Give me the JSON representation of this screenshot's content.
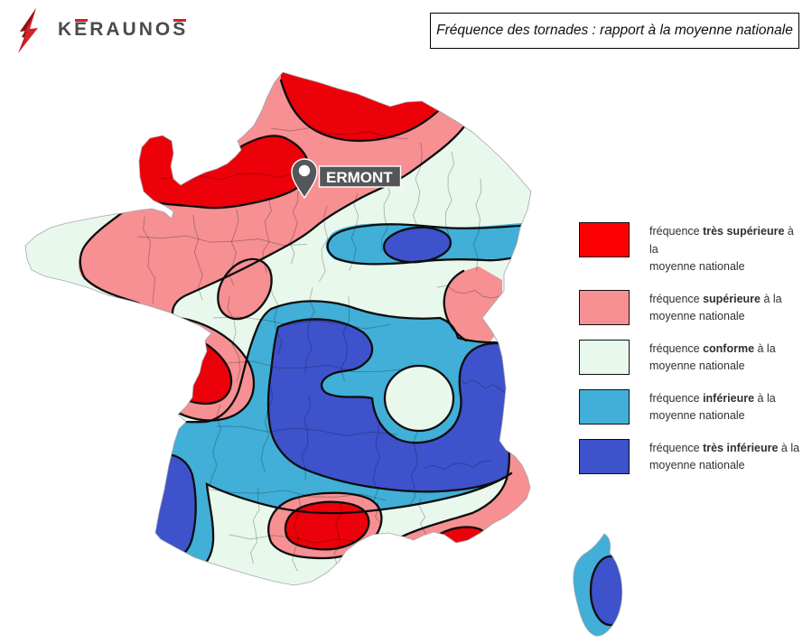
{
  "header": {
    "brand": "KERAUNOS",
    "brand_accents": [
      1,
      7
    ],
    "title": "Fréquence des tornades : rapport à la moyenne nationale"
  },
  "map": {
    "marker_label": "ERMONT"
  },
  "palette": {
    "red": "#ec0009",
    "pink": "#f69092",
    "green": "#e9f8ec",
    "lightblue": "#41afd7",
    "darkblue": "#3d52cb"
  },
  "legend": {
    "items": [
      {
        "color": "#fb0000",
        "pre": "fréquence ",
        "bold": "très supérieure",
        "post": " à la",
        "line2": "moyenne nationale"
      },
      {
        "color": "#f69092",
        "pre": "fréquence ",
        "bold": "supérieure",
        "post": " à la",
        "line2": "moyenne nationale"
      },
      {
        "color": "#e9f8ec",
        "pre": "fréquence ",
        "bold": "conforme",
        "post": " à la",
        "line2": "moyenne nationale"
      },
      {
        "color": "#41afd7",
        "pre": "fréquence ",
        "bold": "inférieure",
        "post": " à la",
        "line2": "moyenne nationale"
      },
      {
        "color": "#3d52cb",
        "pre": "fréquence ",
        "bold": "très inférieure",
        "post": " à la",
        "line2": "moyenne nationale"
      }
    ]
  }
}
